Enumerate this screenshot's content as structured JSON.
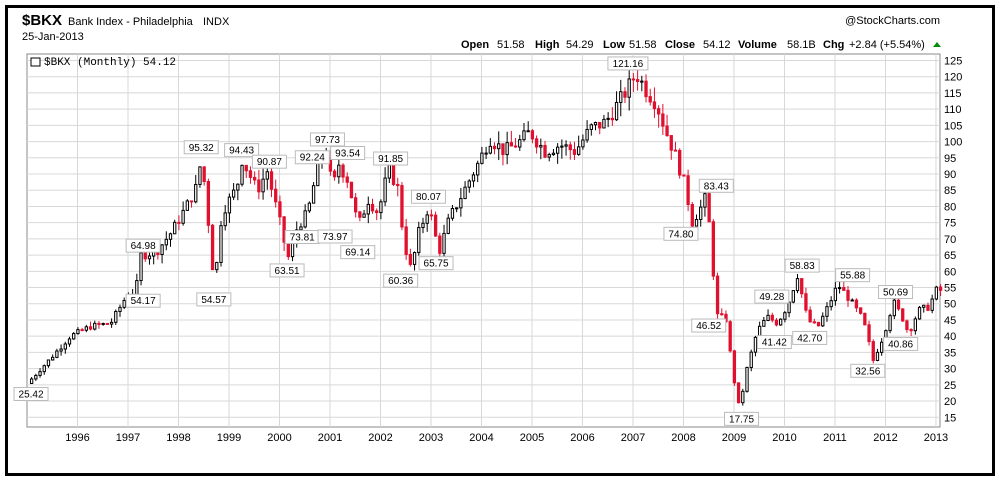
{
  "header": {
    "symbol": "$BKX",
    "name": "Bank Index - Philadelphia",
    "exchange": "INDX",
    "date": "25-Jan-2013",
    "watermark": "@StockCharts.com",
    "open_label": "Open",
    "open": "51.58",
    "high_label": "High",
    "high": "54.29",
    "low_label": "Low",
    "low": "51.58",
    "close_label": "Close",
    "close": "54.12",
    "volume_label": "Volume",
    "volume": "58.1B",
    "chg_label": "Chg",
    "chg": "+2.84 (+5.54%)",
    "legend": "$BKX (Monthly) 54.12"
  },
  "colors": {
    "up": "#000000",
    "down": "#e0102f",
    "grid": "#d8d8d8"
  },
  "chart_data": {
    "type": "candlestick",
    "title": "$BKX Bank Index - Philadelphia INDX",
    "x_ticks": [
      "1996",
      "1997",
      "1998",
      "1999",
      "2000",
      "2001",
      "2002",
      "2003",
      "2004",
      "2005",
      "2006",
      "2007",
      "2008",
      "2009",
      "2010",
      "2011",
      "2012",
      "2013"
    ],
    "y_ticks": [
      15,
      20,
      25,
      30,
      35,
      40,
      45,
      50,
      55,
      60,
      65,
      70,
      75,
      80,
      85,
      90,
      95,
      100,
      105,
      110,
      115,
      120,
      125
    ],
    "ylim": [
      12,
      127
    ],
    "xlim": [
      1995.0,
      2013.08
    ],
    "grid": true,
    "series": [
      {
        "name": "$BKX (Monthly)",
        "points": [
          {
            "t": 1995.05,
            "v": 25.42
          },
          {
            "t": 1995.5,
            "v": 33
          },
          {
            "t": 1995.9,
            "v": 40
          },
          {
            "t": 1996.3,
            "v": 43
          },
          {
            "t": 1996.7,
            "v": 44
          },
          {
            "t": 1997.0,
            "v": 52
          },
          {
            "t": 1997.2,
            "v": 54.17
          },
          {
            "t": 1997.3,
            "v": 64.98
          },
          {
            "t": 1997.6,
            "v": 66
          },
          {
            "t": 1997.9,
            "v": 72
          },
          {
            "t": 1998.2,
            "v": 80
          },
          {
            "t": 1998.4,
            "v": 86
          },
          {
            "t": 1998.5,
            "v": 95.32
          },
          {
            "t": 1998.7,
            "v": 65
          },
          {
            "t": 1998.75,
            "v": 54.57
          },
          {
            "t": 1998.9,
            "v": 78
          },
          {
            "t": 1999.2,
            "v": 86
          },
          {
            "t": 1999.3,
            "v": 94.43
          },
          {
            "t": 1999.6,
            "v": 85
          },
          {
            "t": 1999.8,
            "v": 90.87
          },
          {
            "t": 2000.1,
            "v": 72
          },
          {
            "t": 2000.2,
            "v": 63.51
          },
          {
            "t": 2000.4,
            "v": 73.81
          },
          {
            "t": 2000.6,
            "v": 78
          },
          {
            "t": 2000.8,
            "v": 92.24
          },
          {
            "t": 2000.95,
            "v": 97.73
          },
          {
            "t": 2001.1,
            "v": 85
          },
          {
            "t": 2001.2,
            "v": 93.54
          },
          {
            "t": 2001.4,
            "v": 88
          },
          {
            "t": 2001.6,
            "v": 73.97
          },
          {
            "t": 2001.8,
            "v": 82
          },
          {
            "t": 2002.0,
            "v": 78
          },
          {
            "t": 2002.2,
            "v": 91.85
          },
          {
            "t": 2002.4,
            "v": 85
          },
          {
            "t": 2002.5,
            "v": 69.14
          },
          {
            "t": 2002.65,
            "v": 60.36
          },
          {
            "t": 2002.8,
            "v": 72
          },
          {
            "t": 2003.0,
            "v": 80.07
          },
          {
            "t": 2003.2,
            "v": 65.75
          },
          {
            "t": 2003.4,
            "v": 76
          },
          {
            "t": 2003.7,
            "v": 85
          },
          {
            "t": 2004.0,
            "v": 94
          },
          {
            "t": 2004.2,
            "v": 101
          },
          {
            "t": 2004.5,
            "v": 97
          },
          {
            "t": 2004.8,
            "v": 100
          },
          {
            "t": 2005.0,
            "v": 103
          },
          {
            "t": 2005.3,
            "v": 97
          },
          {
            "t": 2005.6,
            "v": 99
          },
          {
            "t": 2005.9,
            "v": 97
          },
          {
            "t": 2006.2,
            "v": 104
          },
          {
            "t": 2006.5,
            "v": 106
          },
          {
            "t": 2006.8,
            "v": 113
          },
          {
            "t": 2007.0,
            "v": 118
          },
          {
            "t": 2007.1,
            "v": 121.16
          },
          {
            "t": 2007.3,
            "v": 116
          },
          {
            "t": 2007.5,
            "v": 112
          },
          {
            "t": 2007.7,
            "v": 103
          },
          {
            "t": 2007.9,
            "v": 95
          },
          {
            "t": 2008.1,
            "v": 85
          },
          {
            "t": 2008.2,
            "v": 74.8
          },
          {
            "t": 2008.4,
            "v": 80
          },
          {
            "t": 2008.5,
            "v": 83.43
          },
          {
            "t": 2008.6,
            "v": 66
          },
          {
            "t": 2008.7,
            "v": 46.52
          },
          {
            "t": 2008.9,
            "v": 45
          },
          {
            "t": 2009.0,
            "v": 30
          },
          {
            "t": 2009.15,
            "v": 17.75
          },
          {
            "t": 2009.3,
            "v": 30
          },
          {
            "t": 2009.5,
            "v": 41.42
          },
          {
            "t": 2009.7,
            "v": 46
          },
          {
            "t": 2009.9,
            "v": 44
          },
          {
            "t": 2010.1,
            "v": 49.28
          },
          {
            "t": 2010.3,
            "v": 58.83
          },
          {
            "t": 2010.5,
            "v": 45
          },
          {
            "t": 2010.7,
            "v": 42.7
          },
          {
            "t": 2010.9,
            "v": 49
          },
          {
            "t": 2011.1,
            "v": 55.88
          },
          {
            "t": 2011.3,
            "v": 52
          },
          {
            "t": 2011.6,
            "v": 45
          },
          {
            "t": 2011.8,
            "v": 32.56
          },
          {
            "t": 2012.0,
            "v": 40
          },
          {
            "t": 2012.2,
            "v": 50.69
          },
          {
            "t": 2012.4,
            "v": 45
          },
          {
            "t": 2012.5,
            "v": 40.86
          },
          {
            "t": 2012.7,
            "v": 48
          },
          {
            "t": 2012.9,
            "v": 49
          },
          {
            "t": 2013.05,
            "v": 54.12
          }
        ]
      }
    ],
    "annotations": [
      {
        "t": 1995.08,
        "v": 25.42,
        "label": "25.42",
        "pos": "below"
      },
      {
        "t": 1997.3,
        "v": 64.98,
        "label": "64.98",
        "pos": "above"
      },
      {
        "t": 1997.3,
        "v": 54.17,
        "label": "54.17",
        "pos": "below"
      },
      {
        "t": 1998.45,
        "v": 95.32,
        "label": "95.32",
        "pos": "above"
      },
      {
        "t": 1998.7,
        "v": 54.57,
        "label": "54.57",
        "pos": "below"
      },
      {
        "t": 1999.25,
        "v": 94.43,
        "label": "94.43",
        "pos": "above"
      },
      {
        "t": 1999.8,
        "v": 90.87,
        "label": "90.87",
        "pos": "above"
      },
      {
        "t": 2000.15,
        "v": 63.51,
        "label": "63.51",
        "pos": "below"
      },
      {
        "t": 2000.45,
        "v": 73.81,
        "label": "73.81",
        "pos": "below"
      },
      {
        "t": 2000.65,
        "v": 92.24,
        "label": "92.24",
        "pos": "above"
      },
      {
        "t": 2000.95,
        "v": 97.73,
        "label": "97.73",
        "pos": "above"
      },
      {
        "t": 2001.35,
        "v": 93.54,
        "label": "93.54",
        "pos": "above"
      },
      {
        "t": 2001.1,
        "v": 73.97,
        "label": "73.97",
        "pos": "below"
      },
      {
        "t": 2002.2,
        "v": 91.85,
        "label": "91.85",
        "pos": "above"
      },
      {
        "t": 2001.55,
        "v": 69.14,
        "label": "69.14",
        "pos": "below"
      },
      {
        "t": 2002.4,
        "v": 60.36,
        "label": "60.36",
        "pos": "below"
      },
      {
        "t": 2002.95,
        "v": 80.07,
        "label": "80.07",
        "pos": "above"
      },
      {
        "t": 2003.1,
        "v": 65.75,
        "label": "65.75",
        "pos": "below"
      },
      {
        "t": 2006.9,
        "v": 121.16,
        "label": "121.16",
        "pos": "above"
      },
      {
        "t": 2007.95,
        "v": 74.8,
        "label": "74.80",
        "pos": "below"
      },
      {
        "t": 2008.65,
        "v": 83.43,
        "label": "83.43",
        "pos": "above"
      },
      {
        "t": 2008.5,
        "v": 46.52,
        "label": "46.52",
        "pos": "below"
      },
      {
        "t": 2009.15,
        "v": 17.75,
        "label": "17.75",
        "pos": "below"
      },
      {
        "t": 2009.8,
        "v": 41.42,
        "label": "41.42",
        "pos": "below"
      },
      {
        "t": 2009.75,
        "v": 49.28,
        "label": "49.28",
        "pos": "above"
      },
      {
        "t": 2010.35,
        "v": 58.83,
        "label": "58.83",
        "pos": "above"
      },
      {
        "t": 2010.5,
        "v": 42.7,
        "label": "42.70",
        "pos": "below"
      },
      {
        "t": 2011.35,
        "v": 55.88,
        "label": "55.88",
        "pos": "above"
      },
      {
        "t": 2011.65,
        "v": 32.56,
        "label": "32.56",
        "pos": "below"
      },
      {
        "t": 2012.2,
        "v": 50.69,
        "label": "50.69",
        "pos": "above"
      },
      {
        "t": 2012.3,
        "v": 40.86,
        "label": "40.86",
        "pos": "below"
      }
    ]
  }
}
